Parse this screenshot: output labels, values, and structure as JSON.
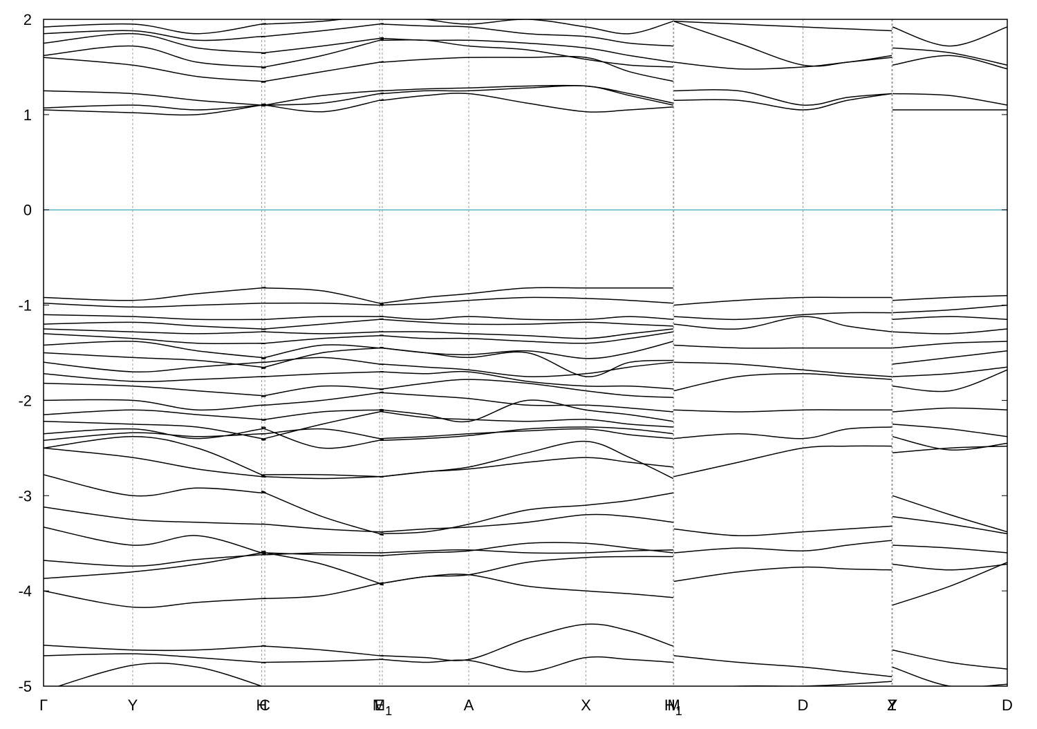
{
  "chart_data": {
    "type": "line",
    "title": "",
    "xlabel": "",
    "ylabel": "",
    "ylim": [
      -5,
      2
    ],
    "grid": false,
    "legend": "none",
    "fermi_level": {
      "value": 0,
      "color": "#5fb4c6"
    },
    "band_color": "#000000",
    "yticks": [
      2,
      1,
      0,
      -1,
      -2,
      -3,
      -4,
      -5
    ],
    "ytick_labels": [
      "2",
      "1",
      "0",
      "-1",
      "-2",
      "-3",
      "-4",
      "-5"
    ],
    "kpoints": [
      {
        "label": "Γ",
        "sub": "",
        "x": 0.0
      },
      {
        "label": "Y",
        "sub": "",
        "x": 0.0925
      },
      {
        "label": "H",
        "sub": "",
        "x": 0.2263
      },
      {
        "label": "C",
        "sub": "",
        "x": 0.2296
      },
      {
        "label": "E",
        "sub": "",
        "x": 0.3487
      },
      {
        "label": "M",
        "sub": "1",
        "x": 0.3515
      },
      {
        "label": "A",
        "sub": "",
        "x": 0.4412
      },
      {
        "label": "X",
        "sub": "",
        "x": 0.5628
      },
      {
        "label": "H",
        "sub": "1",
        "x": 0.6534
      },
      {
        "label": "M",
        "sub": "",
        "x": 0.654
      },
      {
        "label": "D",
        "sub": "",
        "x": 0.788
      },
      {
        "label": "Z",
        "sub": "",
        "x": 0.8802
      },
      {
        "label": "Y",
        "sub": "",
        "x": 0.8809
      },
      {
        "label": "D",
        "sub": "",
        "x": 1.0
      }
    ],
    "x_range": [
      0,
      1
    ],
    "segments": [
      {
        "x": [
          0.0,
          0.0925,
          0.1594,
          0.2263,
          0.2296,
          0.2891,
          0.3487,
          0.3515,
          0.3964,
          0.4412,
          0.502,
          0.5628,
          0.6081,
          0.6534
        ],
        "bands": [
          [
            -5.05,
            -4.78,
            -4.8,
            -5.0,
            -5.03,
            -5.05,
            -5.05,
            -5.05,
            -5.05,
            -5.05,
            -5.05,
            -5.05,
            -5.05,
            -5.05
          ],
          [
            -4.68,
            -4.66,
            -4.7,
            -4.75,
            -4.75,
            -4.74,
            -4.72,
            -4.72,
            -4.75,
            -4.73,
            -4.85,
            -4.7,
            -4.72,
            -4.75
          ],
          [
            -4.57,
            -4.62,
            -4.62,
            -4.58,
            -4.58,
            -4.62,
            -4.68,
            -4.68,
            -4.7,
            -4.72,
            -4.5,
            -4.35,
            -4.42,
            -4.58
          ],
          [
            -4.0,
            -4.17,
            -4.12,
            -4.08,
            -4.08,
            -4.05,
            -3.92,
            -3.92,
            -3.85,
            -3.83,
            -3.95,
            -4.0,
            -4.03,
            -4.07
          ],
          [
            -3.87,
            -3.8,
            -3.72,
            -3.6,
            -3.6,
            -3.72,
            -3.92,
            -3.92,
            -3.85,
            -3.83,
            -3.7,
            -3.65,
            -3.64,
            -3.64
          ],
          [
            -3.68,
            -3.74,
            -3.67,
            -3.62,
            -3.62,
            -3.6,
            -3.6,
            -3.6,
            -3.58,
            -3.57,
            -3.6,
            -3.6,
            -3.58,
            -3.57
          ],
          [
            -3.33,
            -3.52,
            -3.42,
            -3.6,
            -3.6,
            -3.62,
            -3.63,
            -3.63,
            -3.6,
            -3.58,
            -3.5,
            -3.5,
            -3.55,
            -3.6
          ],
          [
            -3.12,
            -3.25,
            -3.28,
            -3.3,
            -3.3,
            -3.35,
            -3.38,
            -3.38,
            -3.35,
            -3.33,
            -3.28,
            -3.2,
            -3.22,
            -3.28
          ],
          [
            -2.78,
            -3.0,
            -2.92,
            -2.97,
            -2.97,
            -3.22,
            -3.4,
            -3.4,
            -3.38,
            -3.3,
            -3.15,
            -3.1,
            -3.05,
            -2.97
          ],
          [
            -2.5,
            -2.6,
            -2.72,
            -2.8,
            -2.8,
            -2.82,
            -2.8,
            -2.8,
            -2.75,
            -2.72,
            -2.65,
            -2.6,
            -2.65,
            -2.7
          ],
          [
            -2.5,
            -2.38,
            -2.5,
            -2.78,
            -2.78,
            -2.78,
            -2.8,
            -2.8,
            -2.75,
            -2.7,
            -2.55,
            -2.43,
            -2.6,
            -2.82
          ],
          [
            -2.42,
            -2.34,
            -2.38,
            -2.35,
            -2.35,
            -2.3,
            -2.4,
            -2.4,
            -2.38,
            -2.35,
            -2.32,
            -2.3,
            -2.36,
            -2.4
          ],
          [
            -2.35,
            -2.3,
            -2.4,
            -2.3,
            -2.3,
            -2.5,
            -2.42,
            -2.42,
            -2.4,
            -2.37,
            -2.3,
            -2.28,
            -2.3,
            -2.35
          ],
          [
            -2.22,
            -2.25,
            -2.28,
            -2.4,
            -2.4,
            -2.25,
            -2.12,
            -2.12,
            -2.18,
            -2.2,
            -2.22,
            -2.2,
            -2.25,
            -2.28
          ],
          [
            -2.15,
            -2.1,
            -2.15,
            -2.2,
            -2.2,
            -2.12,
            -2.1,
            -2.1,
            -2.15,
            -2.22,
            -2.0,
            -2.1,
            -2.15,
            -2.22
          ],
          [
            -2.0,
            -2.0,
            -2.1,
            -2.05,
            -2.05,
            -2.0,
            -1.92,
            -1.92,
            -1.95,
            -1.98,
            -2.05,
            -2.05,
            -2.08,
            -2.12
          ],
          [
            -1.82,
            -1.85,
            -1.9,
            -1.95,
            -1.95,
            -1.85,
            -1.88,
            -1.88,
            -1.82,
            -1.78,
            -1.82,
            -1.9,
            -1.95,
            -1.97
          ],
          [
            -1.72,
            -1.8,
            -1.78,
            -1.75,
            -1.75,
            -1.72,
            -1.7,
            -1.7,
            -1.72,
            -1.7,
            -1.8,
            -1.85,
            -1.85,
            -1.88
          ],
          [
            -1.6,
            -1.7,
            -1.65,
            -1.6,
            -1.6,
            -1.55,
            -1.62,
            -1.62,
            -1.65,
            -1.68,
            -1.75,
            -1.72,
            -1.65,
            -1.6
          ],
          [
            -1.5,
            -1.55,
            -1.58,
            -1.65,
            -1.65,
            -1.5,
            -1.45,
            -1.45,
            -1.5,
            -1.55,
            -1.5,
            -1.75,
            -1.6,
            -1.58
          ],
          [
            -1.42,
            -1.38,
            -1.48,
            -1.55,
            -1.55,
            -1.42,
            -1.45,
            -1.45,
            -1.5,
            -1.52,
            -1.48,
            -1.56,
            -1.5,
            -1.38
          ],
          [
            -1.3,
            -1.35,
            -1.4,
            -1.4,
            -1.4,
            -1.35,
            -1.32,
            -1.32,
            -1.35,
            -1.35,
            -1.38,
            -1.4,
            -1.35,
            -1.28
          ],
          [
            -1.25,
            -1.28,
            -1.3,
            -1.28,
            -1.28,
            -1.3,
            -1.28,
            -1.28,
            -1.28,
            -1.3,
            -1.32,
            -1.35,
            -1.3,
            -1.25
          ],
          [
            -1.2,
            -1.18,
            -1.22,
            -1.25,
            -1.25,
            -1.2,
            -1.15,
            -1.15,
            -1.18,
            -1.2,
            -1.2,
            -1.18,
            -1.2,
            -1.22
          ],
          [
            -1.1,
            -1.12,
            -1.15,
            -1.15,
            -1.15,
            -1.12,
            -1.12,
            -1.12,
            -1.15,
            -1.12,
            -1.15,
            -1.15,
            -1.12,
            -1.15
          ],
          [
            -0.98,
            -1.02,
            -1.0,
            -0.98,
            -0.98,
            -0.98,
            -1.0,
            -1.0,
            -0.98,
            -0.95,
            -0.92,
            -0.93,
            -0.95,
            -0.98
          ],
          [
            -0.92,
            -0.95,
            -0.88,
            -0.82,
            -0.82,
            -0.85,
            -0.98,
            -0.98,
            -0.92,
            -0.88,
            -0.82,
            -0.82,
            -0.82,
            -0.82
          ],
          [
            1.05,
            1.02,
            1.0,
            1.1,
            1.1,
            1.03,
            1.15,
            1.15,
            1.2,
            1.22,
            1.12,
            1.03,
            1.05,
            1.08
          ],
          [
            1.07,
            1.1,
            1.05,
            1.1,
            1.1,
            1.12,
            1.22,
            1.22,
            1.25,
            1.25,
            1.28,
            1.3,
            1.2,
            1.1
          ],
          [
            1.25,
            1.22,
            1.15,
            1.1,
            1.1,
            1.2,
            1.25,
            1.25,
            1.27,
            1.28,
            1.3,
            1.3,
            1.22,
            1.12
          ],
          [
            1.6,
            1.52,
            1.4,
            1.35,
            1.35,
            1.45,
            1.55,
            1.55,
            1.58,
            1.6,
            1.6,
            1.6,
            1.45,
            1.35
          ],
          [
            1.62,
            1.72,
            1.55,
            1.5,
            1.5,
            1.62,
            1.78,
            1.78,
            1.78,
            1.72,
            1.68,
            1.58,
            1.52,
            1.5
          ],
          [
            1.75,
            1.85,
            1.7,
            1.65,
            1.65,
            1.72,
            1.8,
            1.8,
            1.78,
            1.78,
            1.75,
            1.7,
            1.62,
            1.55
          ],
          [
            1.85,
            1.88,
            1.78,
            1.82,
            1.82,
            1.88,
            1.95,
            1.95,
            1.93,
            1.92,
            1.85,
            1.82,
            1.75,
            1.72
          ],
          [
            1.92,
            1.95,
            1.85,
            1.95,
            1.95,
            1.98,
            2.05,
            2.05,
            2.0,
            1.95,
            2.0,
            1.92,
            1.85,
            1.98
          ]
        ]
      },
      {
        "x": [
          0.654,
          0.721,
          0.788,
          0.8341,
          0.8802
        ],
        "bands": [
          [
            -5.05,
            -5.0,
            -5.0,
            -4.98,
            -4.95
          ],
          [
            -4.68,
            -4.75,
            -4.8,
            -4.85,
            -4.9
          ],
          [
            -3.9,
            -3.8,
            -3.75,
            -3.77,
            -3.78
          ],
          [
            -3.6,
            -3.55,
            -3.58,
            -3.52,
            -3.47
          ],
          [
            -3.35,
            -3.42,
            -3.38,
            -3.35,
            -3.32
          ],
          [
            -2.8,
            -2.65,
            -2.5,
            -2.48,
            -2.48
          ],
          [
            -2.4,
            -2.35,
            -2.4,
            -2.3,
            -2.28
          ],
          [
            -2.1,
            -2.12,
            -2.1,
            -2.1,
            -2.1
          ],
          [
            -1.9,
            -1.75,
            -1.72,
            -1.75,
            -1.78
          ],
          [
            -1.6,
            -1.62,
            -1.68,
            -1.72,
            -1.75
          ],
          [
            -1.42,
            -1.45,
            -1.45,
            -1.45,
            -1.45
          ],
          [
            -1.2,
            -1.25,
            -1.12,
            -1.22,
            -1.28
          ],
          [
            -1.12,
            -1.15,
            -1.1,
            -1.08,
            -1.08
          ],
          [
            -1.0,
            -0.95,
            -0.92,
            -0.92,
            -0.92
          ],
          [
            1.15,
            1.15,
            1.05,
            1.15,
            1.22
          ],
          [
            1.25,
            1.25,
            1.1,
            1.18,
            1.22
          ],
          [
            1.55,
            1.48,
            1.5,
            1.55,
            1.6
          ],
          [
            1.98,
            1.75,
            1.52,
            1.55,
            1.62
          ],
          [
            1.98,
            1.95,
            1.92,
            1.9,
            1.88
          ]
        ]
      },
      {
        "x": [
          0.8809,
          0.9405,
          1.0
        ],
        "bands": [
          [
            -4.8,
            -5.0,
            -4.98
          ],
          [
            -4.62,
            -4.75,
            -4.82
          ],
          [
            -4.15,
            -3.95,
            -3.7
          ],
          [
            -3.72,
            -3.78,
            -3.72
          ],
          [
            -3.52,
            -3.55,
            -3.6
          ],
          [
            -3.22,
            -3.3,
            -3.4
          ],
          [
            -3.0,
            -3.2,
            -3.38
          ],
          [
            -2.55,
            -2.5,
            -2.48
          ],
          [
            -2.38,
            -2.52,
            -2.45
          ],
          [
            -2.25,
            -2.3,
            -2.38
          ],
          [
            -2.12,
            -2.08,
            -2.1
          ],
          [
            -1.85,
            -1.9,
            -1.68
          ],
          [
            -1.75,
            -1.72,
            -1.65
          ],
          [
            -1.62,
            -1.55,
            -1.48
          ],
          [
            -1.45,
            -1.4,
            -1.38
          ],
          [
            -1.28,
            -1.3,
            -1.25
          ],
          [
            -1.15,
            -1.12,
            -1.15
          ],
          [
            -1.08,
            -1.05,
            -1.0
          ],
          [
            -0.95,
            -0.92,
            -0.9
          ],
          [
            1.05,
            1.05,
            1.05
          ],
          [
            1.22,
            1.2,
            1.1
          ],
          [
            1.52,
            1.62,
            1.48
          ],
          [
            1.7,
            1.65,
            1.52
          ],
          [
            1.92,
            1.72,
            1.92
          ]
        ]
      }
    ]
  }
}
